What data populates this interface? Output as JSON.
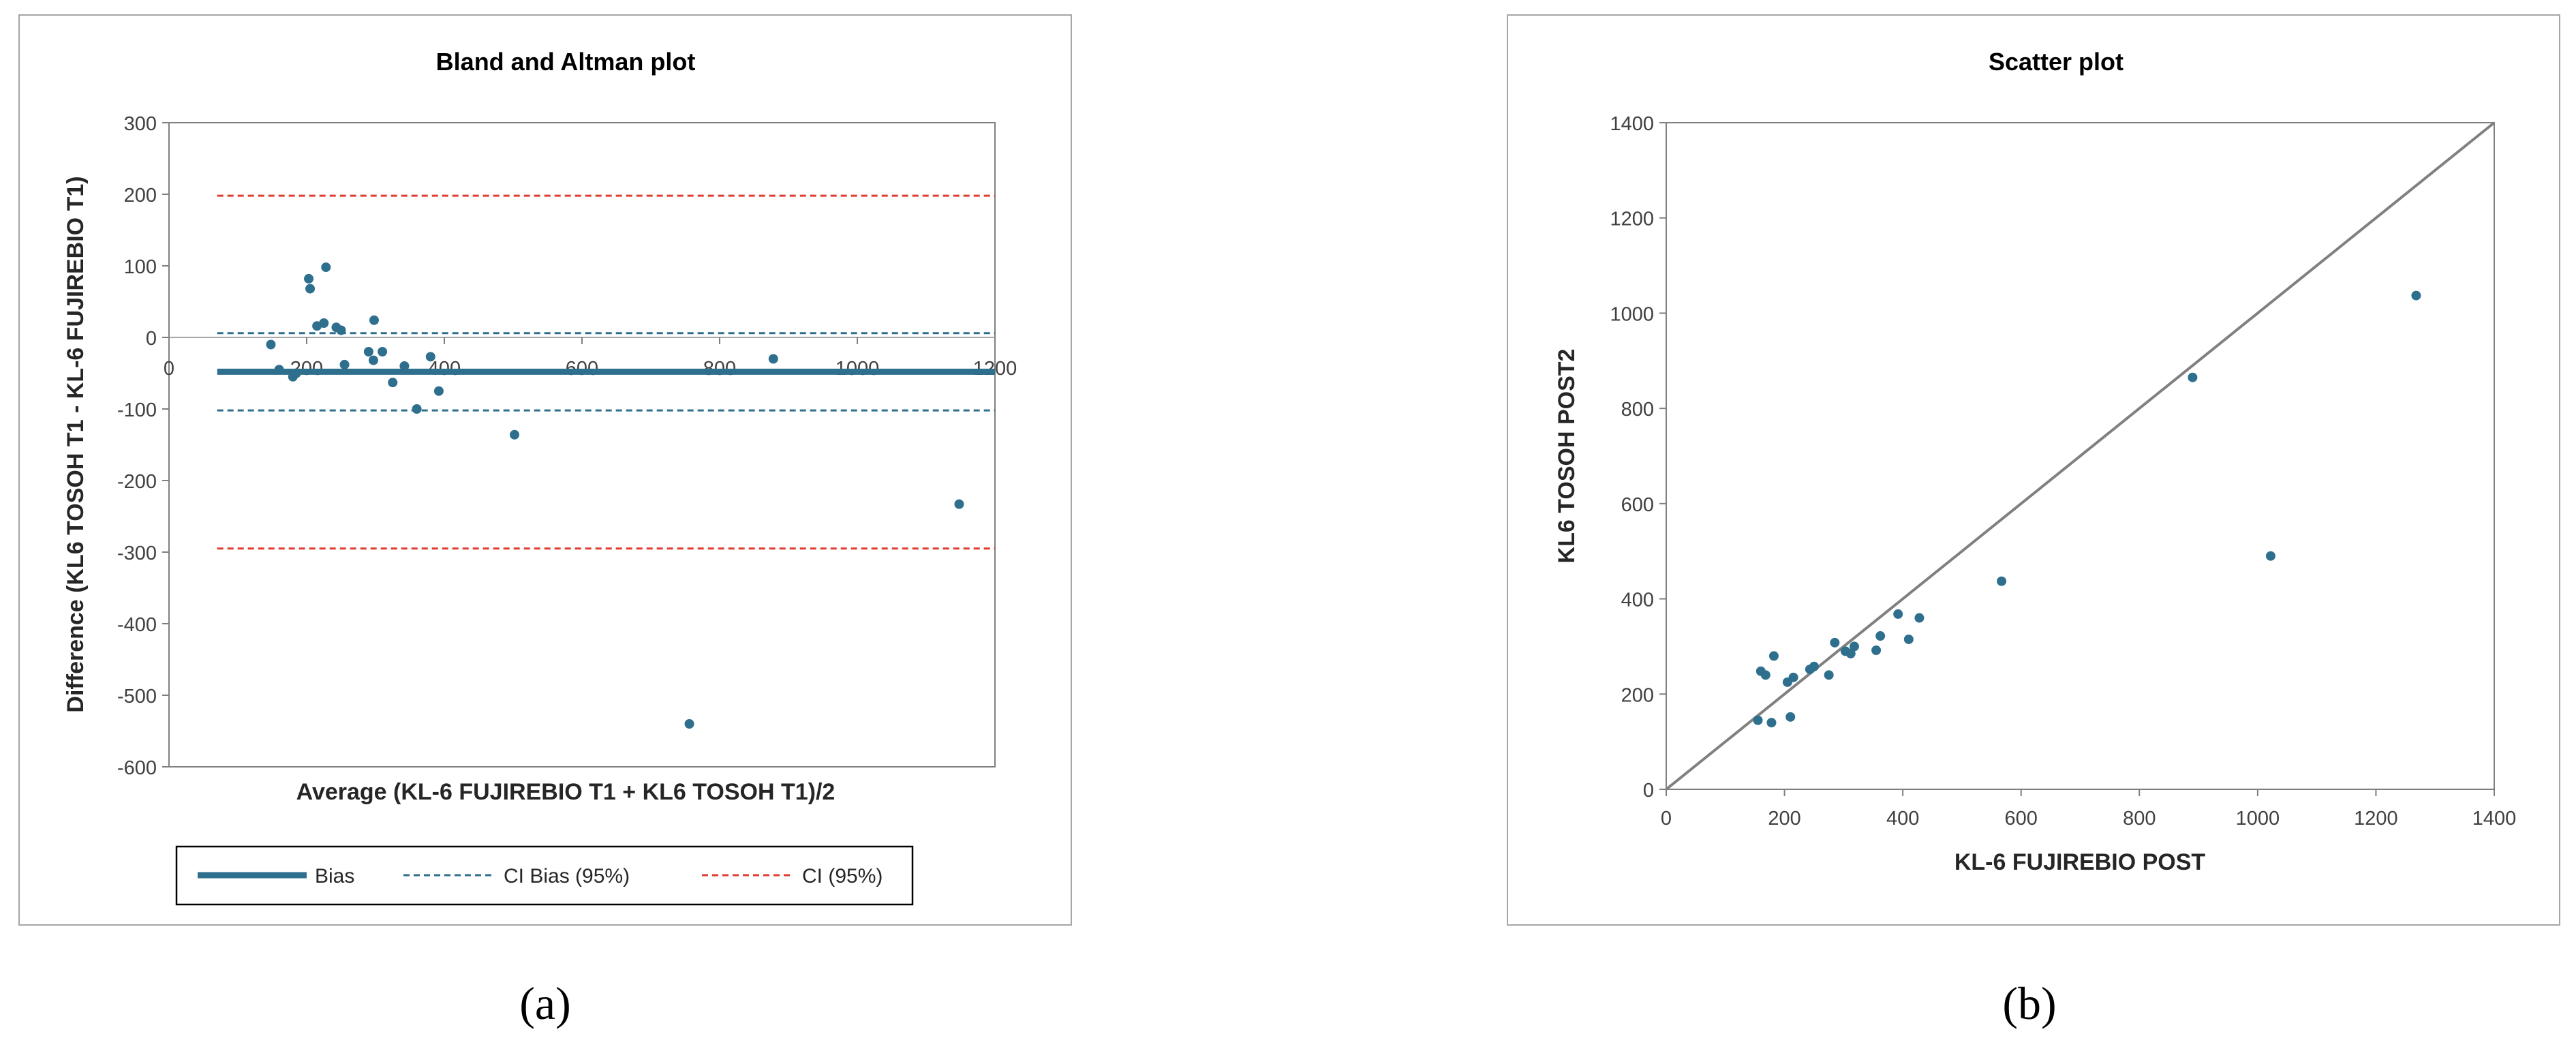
{
  "panels": [
    {
      "caption": "(a)",
      "chart_data": {
        "type": "scatter",
        "title": "Bland and Altman plot",
        "xlabel": "Average  (KL-6 FUJIREBIO T1 + KL6 TOSOH T1)/2",
        "ylabel": "Difference  (KL6 TOSOH T1 - KL-6 FUJIREBIO T1)",
        "xlim": [
          0,
          1200
        ],
        "ylim": [
          -600,
          300
        ],
        "xticks": [
          0,
          200,
          400,
          600,
          800,
          1000,
          1200
        ],
        "yticks": [
          300,
          200,
          100,
          0,
          -100,
          -200,
          -300,
          -400,
          -500,
          -600
        ],
        "grid": false,
        "legend_position": "bottom",
        "points": [
          {
            "x": 148,
            "y": -10
          },
          {
            "x": 160,
            "y": -45
          },
          {
            "x": 180,
            "y": -55
          },
          {
            "x": 185,
            "y": -50
          },
          {
            "x": 203,
            "y": 82
          },
          {
            "x": 205,
            "y": 68
          },
          {
            "x": 215,
            "y": 16
          },
          {
            "x": 225,
            "y": 20
          },
          {
            "x": 228,
            "y": 98
          },
          {
            "x": 243,
            "y": 14
          },
          {
            "x": 250,
            "y": 10
          },
          {
            "x": 255,
            "y": -38
          },
          {
            "x": 290,
            "y": -20
          },
          {
            "x": 297,
            "y": -32
          },
          {
            "x": 298,
            "y": 24
          },
          {
            "x": 310,
            "y": -20
          },
          {
            "x": 325,
            "y": -63
          },
          {
            "x": 342,
            "y": -40
          },
          {
            "x": 360,
            "y": -100
          },
          {
            "x": 380,
            "y": -27
          },
          {
            "x": 392,
            "y": -75
          },
          {
            "x": 502,
            "y": -136
          },
          {
            "x": 756,
            "y": -540
          },
          {
            "x": 878,
            "y": -30
          },
          {
            "x": 1148,
            "y": -233
          }
        ],
        "lines": [
          {
            "name": "Bias",
            "y": -48,
            "x_range": [
              70,
              1200
            ],
            "color": "#2e6f8e",
            "dash": "solid"
          },
          {
            "name": "CI Bias (95%)",
            "y": 6,
            "x_range": [
              70,
              1200
            ],
            "color": "#2e6f8e",
            "dash": "dashed"
          },
          {
            "name": "CI Bias (95%)",
            "y": -102,
            "x_range": [
              70,
              1200
            ],
            "color": "#2e6f8e",
            "dash": "dashed"
          },
          {
            "name": "CI (95%)",
            "y": 198,
            "x_range": [
              70,
              1200
            ],
            "color": "#e03c31",
            "dash": "dashed"
          },
          {
            "name": "CI (95%)",
            "y": -295,
            "x_range": [
              70,
              1200
            ],
            "color": "#e03c31",
            "dash": "dashed"
          }
        ],
        "legend": [
          {
            "label": "Bias",
            "color": "#2e6f8e",
            "dash": "solid"
          },
          {
            "label": "CI Bias (95%)",
            "color": "#2e6f8e",
            "dash": "dashed"
          },
          {
            "label": "CI (95%)",
            "color": "#e03c31",
            "dash": "dashed"
          }
        ],
        "point_color": "#2e6f8e"
      }
    },
    {
      "caption": "(b)",
      "chart_data": {
        "type": "scatter",
        "title": "Scatter plot",
        "xlabel": "KL-6 FUJIREBIO POST",
        "ylabel": "KL6 TOSOH POST2",
        "xlim": [
          0,
          1400
        ],
        "ylim": [
          0,
          1400
        ],
        "xticks": [
          0,
          200,
          400,
          600,
          800,
          1000,
          1200,
          1400
        ],
        "yticks": [
          0,
          200,
          400,
          600,
          800,
          1000,
          1200,
          1400
        ],
        "grid": false,
        "identity_line": {
          "from": [
            0,
            0
          ],
          "to": [
            1400,
            1400
          ],
          "color": "#808080"
        },
        "points": [
          {
            "x": 155,
            "y": 145
          },
          {
            "x": 160,
            "y": 248
          },
          {
            "x": 168,
            "y": 240
          },
          {
            "x": 178,
            "y": 140
          },
          {
            "x": 182,
            "y": 280
          },
          {
            "x": 205,
            "y": 225
          },
          {
            "x": 210,
            "y": 152
          },
          {
            "x": 215,
            "y": 235
          },
          {
            "x": 243,
            "y": 252
          },
          {
            "x": 250,
            "y": 258
          },
          {
            "x": 275,
            "y": 240
          },
          {
            "x": 285,
            "y": 308
          },
          {
            "x": 303,
            "y": 290
          },
          {
            "x": 312,
            "y": 285
          },
          {
            "x": 318,
            "y": 300
          },
          {
            "x": 355,
            "y": 292
          },
          {
            "x": 362,
            "y": 322
          },
          {
            "x": 392,
            "y": 368
          },
          {
            "x": 410,
            "y": 315
          },
          {
            "x": 428,
            "y": 360
          },
          {
            "x": 567,
            "y": 437
          },
          {
            "x": 890,
            "y": 865
          },
          {
            "x": 1022,
            "y": 490
          },
          {
            "x": 1268,
            "y": 1037
          }
        ],
        "point_color": "#2e6f8e"
      }
    }
  ]
}
